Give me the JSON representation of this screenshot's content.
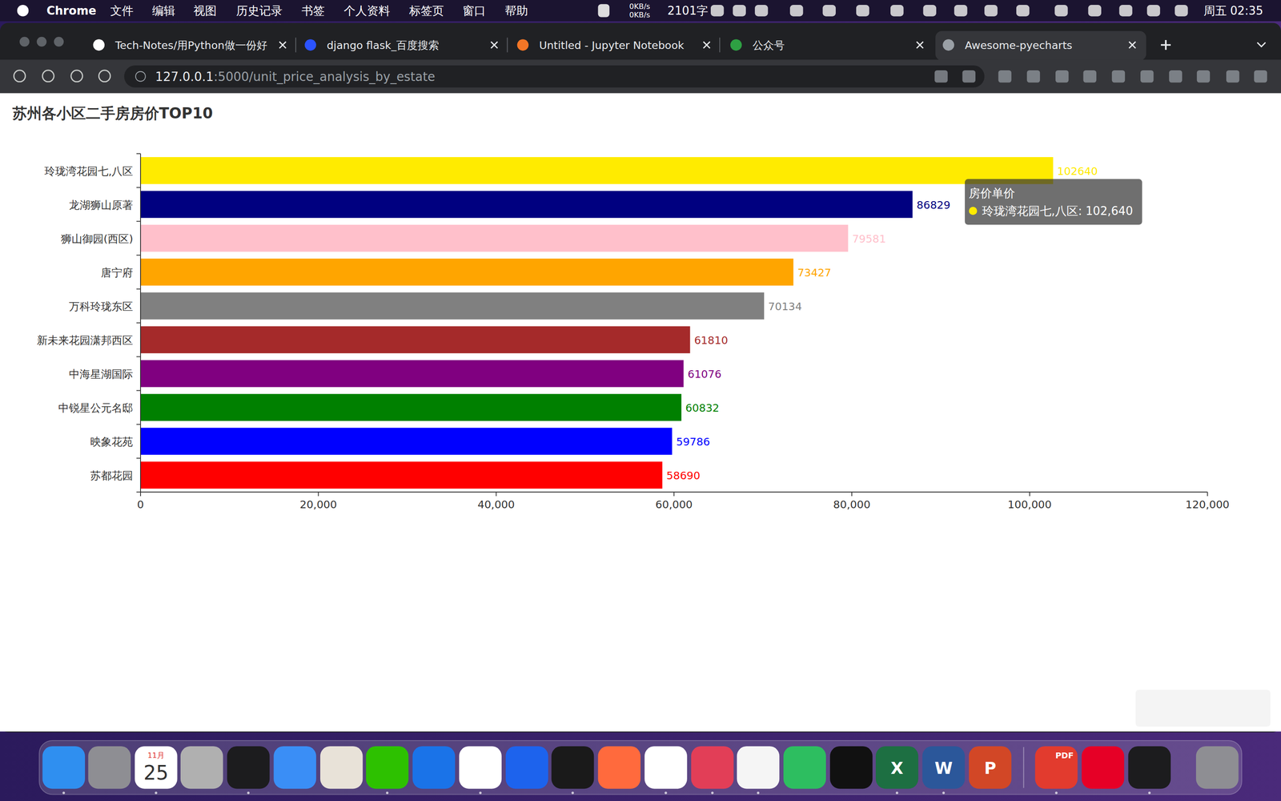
{
  "menu_bar": {
    "app": "Chrome",
    "items": [
      "文件",
      "编辑",
      "视图",
      "历史记录",
      "书签",
      "个人资料",
      "标签页",
      "窗口",
      "帮助"
    ],
    "net_speed": [
      "0KB/s",
      "0KB/s"
    ],
    "word_count": "2101字",
    "clock": "周五 02:35"
  },
  "tabs": [
    {
      "title": "Tech-Notes/用Python做一份好",
      "active": false
    },
    {
      "title": "django flask_百度搜索",
      "active": false
    },
    {
      "title": "Untitled - Jupyter Notebook",
      "active": false
    },
    {
      "title": "公众号",
      "active": false
    },
    {
      "title": "Awesome-pyecharts",
      "active": true
    }
  ],
  "address_bar": {
    "host": "127.0.0.1",
    "rest": ":5000/unit_price_analysis_by_estate"
  },
  "chart_data": {
    "type": "bar",
    "orientation": "horizontal",
    "title": "苏州各小区二手房房价TOP10",
    "categories": [
      "玲珑湾花园七,八区",
      "龙湖狮山原著",
      "狮山御园(西区)",
      "唐宁府",
      "万科玲珑东区",
      "新未来花园潇邦西区",
      "中海星湖国际",
      "中锐星公元名邸",
      "映象花苑",
      "苏都花园"
    ],
    "series": [
      {
        "name": "房价单价",
        "values": [
          102640,
          86829,
          79581,
          73427,
          70134,
          61810,
          61076,
          60832,
          59786,
          58690
        ],
        "colors": [
          "#ffeb00",
          "#000080",
          "#ffc0cb",
          "#ffa500",
          "#808080",
          "#a52a2a",
          "#800080",
          "#008000",
          "#0000ff",
          "#ff0000"
        ]
      }
    ],
    "xlim": [
      0,
      120000
    ],
    "xticks": [
      0,
      {
        "value": 20000,
        "label": "20,000"
      },
      {
        "value": 40000,
        "label": "40,000"
      },
      {
        "value": 60000,
        "label": "60,000"
      },
      {
        "value": 80000,
        "label": "80,000"
      },
      {
        "value": 100000,
        "label": "100,000"
      },
      {
        "value": 120000,
        "label": "120,000"
      }
    ],
    "data_labels": true,
    "grid": false
  },
  "tooltip": {
    "text": "玲珑湾花园七,八区: 102,640"
  },
  "dock": {
    "calendar_month": "11月",
    "calendar_day": "25",
    "excel": "X",
    "word": "W",
    "powerpoint": "P",
    "pdf_badge": "PDF"
  }
}
